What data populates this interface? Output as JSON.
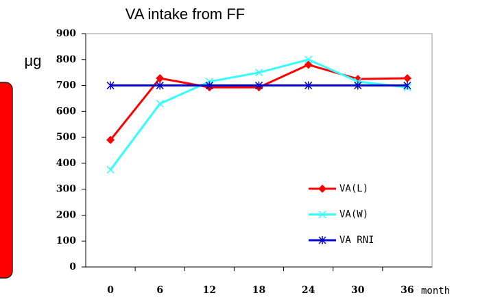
{
  "chart_data": {
    "type": "line",
    "title": "VA intake from FF",
    "y_label": "μg",
    "x_label": "month",
    "categories": [
      "0",
      "6",
      "12",
      "18",
      "24",
      "30",
      "36"
    ],
    "series": [
      {
        "name": "VA(L)",
        "color": "#ff0000",
        "marker": "diamond",
        "values": [
          490,
          728,
          693,
          693,
          780,
          725,
          728
        ]
      },
      {
        "name": "VA(W)",
        "color": "#33ffff",
        "marker": "x",
        "values": [
          375,
          630,
          715,
          750,
          800,
          715,
          693
        ]
      },
      {
        "name": "VA RNI",
        "color": "#0000cc",
        "marker": "asterisk",
        "values": [
          700,
          700,
          700,
          700,
          700,
          700,
          700
        ]
      }
    ],
    "ylim": [
      0,
      900
    ],
    "yticks": [
      0,
      100,
      200,
      300,
      400,
      500,
      600,
      700,
      800,
      900
    ],
    "grid": false,
    "legend": "lower right"
  }
}
